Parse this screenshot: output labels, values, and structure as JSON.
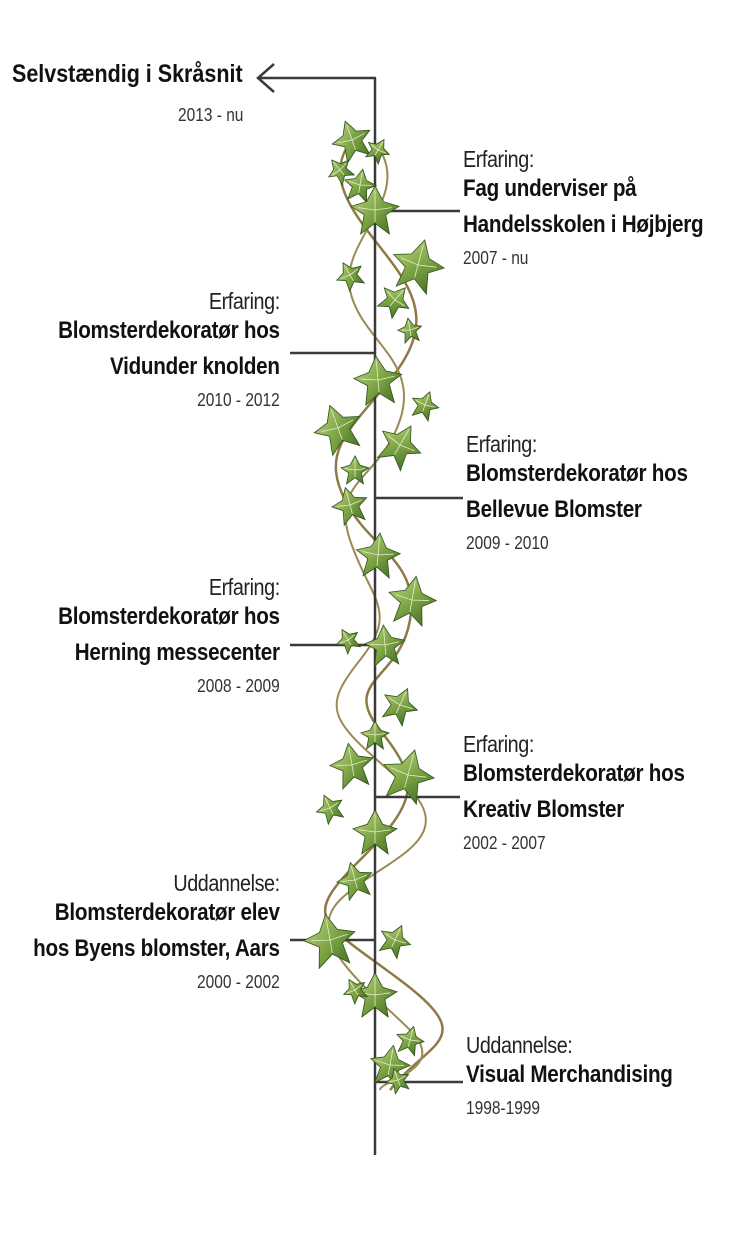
{
  "current": {
    "title": "Selvstændig i Skråsnit",
    "years": "2013 - nu"
  },
  "entries": [
    {
      "side": "right",
      "kind": "Erfaring:",
      "title_lines": [
        "Fag underviser på",
        "Handelsskolen i Højbjerg"
      ],
      "years": "2007 - nu"
    },
    {
      "side": "left",
      "kind": "Erfaring:",
      "title_lines": [
        "Blomsterdekoratør hos",
        "Vidunder knolden"
      ],
      "years": "2010 - 2012"
    },
    {
      "side": "right",
      "kind": "Erfaring:",
      "title_lines": [
        "Blomsterdekoratør hos",
        "Bellevue Blomster"
      ],
      "years": "2009 - 2010"
    },
    {
      "side": "left",
      "kind": "Erfaring:",
      "title_lines": [
        "Blomsterdekoratør hos",
        "Herning messecenter"
      ],
      "years": "2008 - 2009"
    },
    {
      "side": "right",
      "kind": "Erfaring:",
      "title_lines": [
        "Blomsterdekoratør hos",
        "Kreativ Blomster"
      ],
      "years": "2002 - 2007"
    },
    {
      "side": "left",
      "kind": "Uddannelse:",
      "title_lines": [
        "Blomsterdekoratør elev",
        "hos Byens blomster, Aars"
      ],
      "years": "2000 - 2002"
    },
    {
      "side": "right",
      "kind": "Uddannelse:",
      "title_lines": [
        "Visual Merchandising"
      ],
      "years": "1998-1999"
    }
  ],
  "colors": {
    "line": "#3a3a3a",
    "leaf_light": "#a7c86c",
    "leaf_dark": "#3f6a22",
    "vine": "#8a7a4a"
  },
  "icons": {
    "arrow": "arrow-left-icon",
    "leaf": "ivy-leaf-icon"
  }
}
